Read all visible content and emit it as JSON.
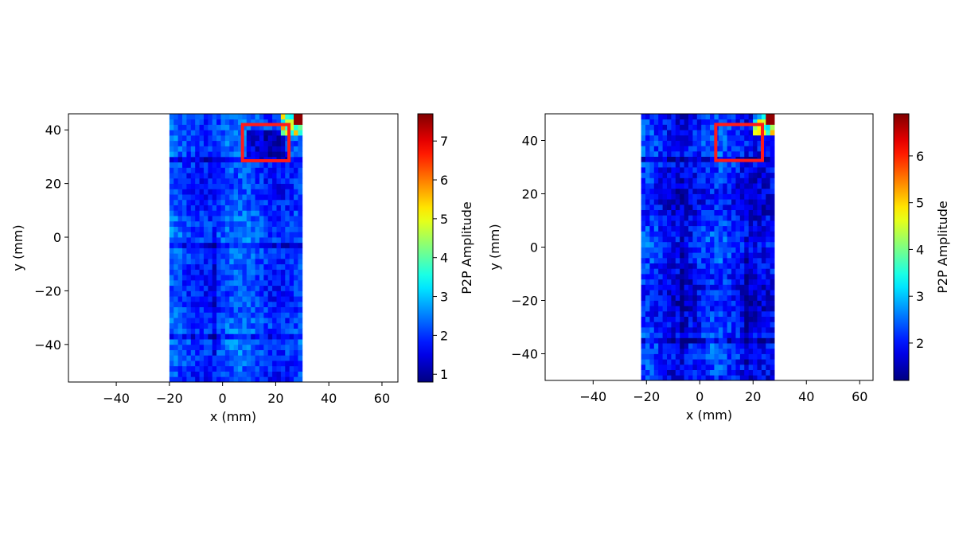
{
  "chart_data": [
    {
      "type": "heatmap",
      "title": "",
      "xlabel": "x (mm)",
      "ylabel": "y (mm)",
      "xlim": [
        -58,
        66
      ],
      "ylim": [
        -54,
        46
      ],
      "xticks": [
        -40,
        -20,
        0,
        20,
        40,
        60
      ],
      "yticks": [
        -40,
        -20,
        0,
        20,
        40
      ],
      "xtick_labels": [
        "−40",
        "−20",
        "0",
        "20",
        "40",
        "60"
      ],
      "ytick_labels": [
        "−40",
        "−20",
        "0",
        "20",
        "40"
      ],
      "data_extent": {
        "x": [
          -20,
          30
        ],
        "y": [
          -54,
          46
        ]
      },
      "grid": false,
      "colormap": "jet",
      "colorbar": {
        "label": "P2P Amplitude",
        "range": [
          0.8,
          7.7
        ],
        "ticks": [
          1,
          2,
          3,
          4,
          5,
          6,
          7
        ],
        "tick_labels": [
          "1",
          "2",
          "3",
          "4",
          "5",
          "6",
          "7"
        ]
      },
      "annotations": [
        {
          "type": "rectangle",
          "color": "#ff1a1a",
          "x": [
            7.5,
            25
          ],
          "y": [
            28.5,
            42
          ]
        }
      ],
      "values_summary": {
        "typical": 2.1,
        "dark_region": 1.0,
        "hot_corner_max": 7.7
      }
    },
    {
      "type": "heatmap",
      "title": "",
      "xlabel": "x (mm)",
      "ylabel": "y (mm)",
      "xlim": [
        -58,
        65
      ],
      "ylim": [
        -50,
        50
      ],
      "xticks": [
        -40,
        -20,
        0,
        20,
        40,
        60
      ],
      "yticks": [
        -40,
        -20,
        0,
        20,
        40
      ],
      "xtick_labels": [
        "−40",
        "−20",
        "0",
        "20",
        "40",
        "60"
      ],
      "ytick_labels": [
        "−40",
        "−20",
        "0",
        "20",
        "40"
      ],
      "data_extent": {
        "x": [
          -22,
          28
        ],
        "y": [
          -50,
          50
        ]
      },
      "grid": false,
      "colormap": "jet",
      "colorbar": {
        "label": "P2P Amplitude",
        "range": [
          1.2,
          6.9
        ],
        "ticks": [
          2,
          3,
          4,
          5,
          6
        ],
        "tick_labels": [
          "2",
          "3",
          "4",
          "5",
          "6"
        ]
      },
      "annotations": [
        {
          "type": "rectangle",
          "color": "#ff1a1a",
          "x": [
            6,
            23.5
          ],
          "y": [
            32.5,
            46
          ]
        }
      ],
      "values_summary": {
        "typical": 2.0,
        "hot_corner_max": 6.9
      }
    }
  ]
}
